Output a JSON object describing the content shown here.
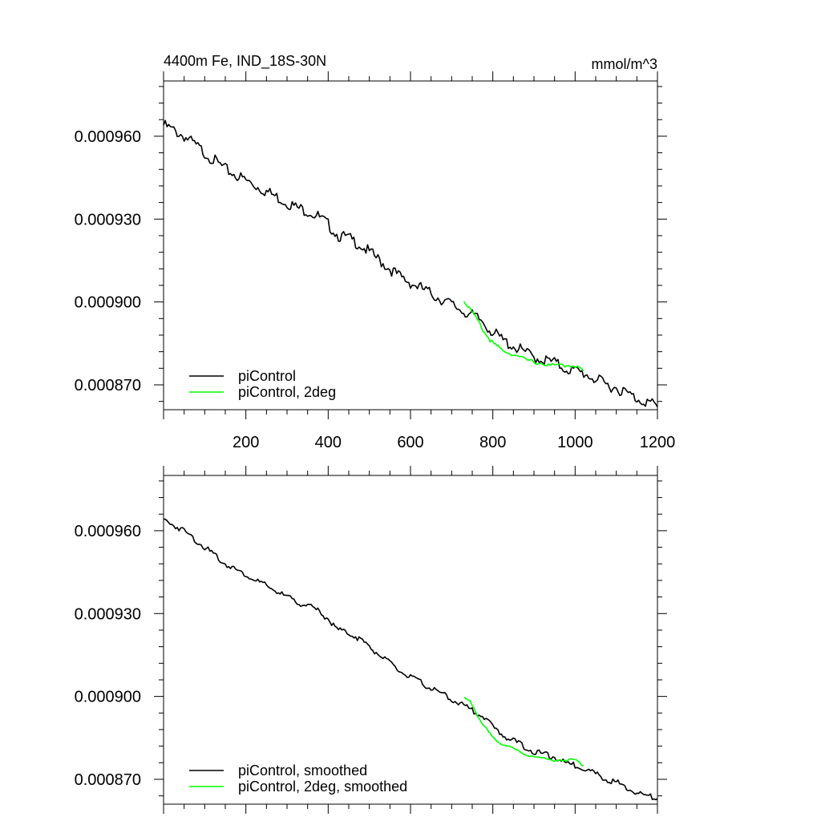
{
  "chart_data": [
    {
      "type": "line",
      "title": "4400m Fe, IND_18S-30N",
      "units": "mmol/m^3",
      "xlim": [
        0,
        1200
      ],
      "ylim": [
        0.000861,
        0.00098
      ],
      "x_ticks": [
        200,
        400,
        600,
        800,
        1000,
        1200
      ],
      "x_tick_labels": [
        "200",
        "400",
        "600",
        "800",
        "1000",
        "1200"
      ],
      "y_ticks": [
        0.00087,
        0.0009,
        0.00093,
        0.00096
      ],
      "y_tick_labels": [
        "0.000870",
        "0.000900",
        "0.000930",
        "0.000960"
      ],
      "legend_position": "bottom-left",
      "series": [
        {
          "name": "piControl",
          "color": "#000000",
          "x": [
            0,
            25,
            50,
            75,
            100,
            125,
            150,
            175,
            200,
            225,
            250,
            275,
            300,
            325,
            350,
            375,
            400,
            425,
            450,
            475,
            500,
            525,
            550,
            575,
            600,
            625,
            650,
            675,
            700,
            725,
            750,
            775,
            800,
            825,
            850,
            875,
            900,
            925,
            950,
            975,
            1000,
            1025,
            1050,
            1075,
            1100,
            1125,
            1150,
            1175,
            1200
          ],
          "y": [
            0.000964,
            0.000962,
            0.00096,
            0.000957,
            0.000954,
            0.000951,
            0.000948,
            0.000946,
            0.000944,
            0.000942,
            0.00094,
            0.000938,
            0.000936,
            0.000934,
            0.000933,
            0.000931,
            0.000928,
            0.000924,
            0.000923,
            0.000921,
            0.000918,
            0.000915,
            0.000912,
            0.000909,
            0.000907,
            0.000905,
            0.000903,
            0.000901,
            0.000899,
            0.000897,
            0.000895,
            0.000893,
            0.000889,
            0.000886,
            0.000884,
            0.000882,
            0.00088,
            0.000879,
            0.000878,
            0.000876,
            0.000875,
            0.000874,
            0.000872,
            0.00087,
            0.000869,
            0.000867,
            0.000865,
            0.000864,
            0.000862
          ]
        },
        {
          "name": "piControl, 2deg",
          "color": "#00ff00",
          "x": [
            730,
            745,
            760,
            780,
            800,
            820,
            850,
            880,
            910,
            940,
            970,
            1000,
            1020
          ],
          "y": [
            0.0009,
            0.000898,
            0.000894,
            0.000889,
            0.000885,
            0.000883,
            0.000881,
            0.000879,
            0.000878,
            0.000877,
            0.000877,
            0.000877,
            0.000875
          ]
        }
      ]
    },
    {
      "type": "line",
      "xlim": [
        0,
        1200
      ],
      "ylim": [
        0.000861,
        0.00098
      ],
      "y_ticks": [
        0.00087,
        0.0009,
        0.00093,
        0.00096
      ],
      "y_tick_labels": [
        "0.000870",
        "0.000900",
        "0.000930",
        "0.000960"
      ],
      "legend_position": "bottom-left",
      "series": [
        {
          "name": "piControl, smoothed",
          "color": "#000000",
          "x": [
            0,
            25,
            50,
            75,
            100,
            125,
            150,
            175,
            200,
            225,
            250,
            275,
            300,
            325,
            350,
            375,
            400,
            425,
            450,
            475,
            500,
            525,
            550,
            575,
            600,
            625,
            650,
            675,
            700,
            725,
            750,
            775,
            800,
            825,
            850,
            875,
            900,
            925,
            950,
            975,
            1000,
            1025,
            1050,
            1075,
            1100,
            1125,
            1150,
            1175,
            1200
          ],
          "y": [
            0.000964,
            0.000962,
            0.00096,
            0.000957,
            0.000954,
            0.000951,
            0.000948,
            0.000946,
            0.000944,
            0.000942,
            0.00094,
            0.000938,
            0.000936,
            0.000934,
            0.000933,
            0.000931,
            0.000928,
            0.000924,
            0.000923,
            0.000921,
            0.000918,
            0.000915,
            0.000912,
            0.000909,
            0.000907,
            0.000905,
            0.000903,
            0.000901,
            0.000899,
            0.000897,
            0.000895,
            0.000893,
            0.000889,
            0.000886,
            0.000884,
            0.000882,
            0.00088,
            0.000879,
            0.000878,
            0.000876,
            0.000875,
            0.000874,
            0.000872,
            0.00087,
            0.000869,
            0.000867,
            0.000865,
            0.000864,
            0.000863
          ]
        },
        {
          "name": "piControl, 2deg, smoothed",
          "color": "#00ff00",
          "x": [
            730,
            745,
            760,
            780,
            800,
            820,
            850,
            880,
            910,
            940,
            970,
            1000,
            1020
          ],
          "y": [
            0.0009,
            0.000898,
            0.000894,
            0.000889,
            0.000885,
            0.000883,
            0.000881,
            0.000879,
            0.000878,
            0.000877,
            0.000877,
            0.000877,
            0.000875
          ]
        }
      ]
    }
  ]
}
